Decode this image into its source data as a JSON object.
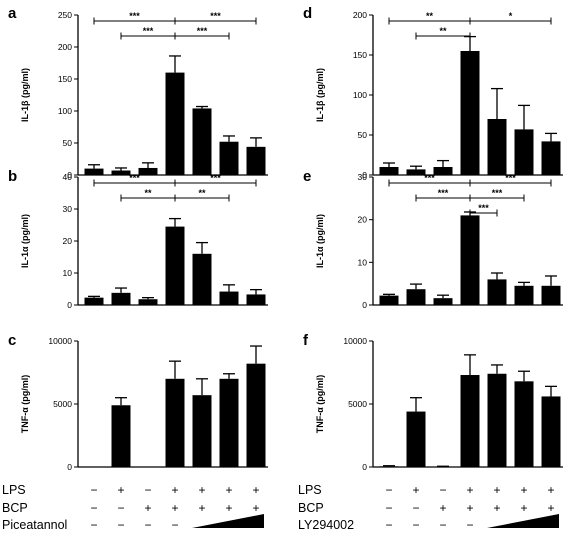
{
  "panels": [
    {
      "label": "a",
      "ylabel": "IL-1β (pg/ml)",
      "ylim": [
        0,
        250
      ],
      "ticks": [
        0,
        50,
        100,
        150,
        200,
        250
      ],
      "values": [
        10,
        7,
        11,
        160,
        104,
        52,
        44
      ],
      "errors": [
        6,
        4,
        8,
        26,
        3,
        9,
        14
      ],
      "sig": [
        {
          "from": 0,
          "to": 3,
          "text": "***",
          "level": 0
        },
        {
          "from": 3,
          "to": 6,
          "text": "***",
          "level": 0
        },
        {
          "from": 1,
          "to": 3,
          "text": "***",
          "level": 1
        },
        {
          "from": 3,
          "to": 5,
          "text": "***",
          "level": 1
        }
      ]
    },
    {
      "label": "b",
      "ylabel": "IL-1α (pg/ml)",
      "ylim": [
        0,
        40
      ],
      "ticks": [
        0,
        10,
        20,
        30,
        40
      ],
      "values": [
        2.3,
        3.8,
        1.8,
        24.5,
        16,
        4.2,
        3.3
      ],
      "errors": [
        0.4,
        1.5,
        0.5,
        2.5,
        3.5,
        2.1,
        1.5
      ],
      "sig": [
        {
          "from": 0,
          "to": 3,
          "text": "***",
          "level": 0
        },
        {
          "from": 3,
          "to": 6,
          "text": "***",
          "level": 0
        },
        {
          "from": 1,
          "to": 3,
          "text": "**",
          "level": 1
        },
        {
          "from": 3,
          "to": 5,
          "text": "**",
          "level": 1
        }
      ]
    },
    {
      "label": "c",
      "ylabel": "TNF-α (pg/ml)",
      "ylim": [
        0,
        10000
      ],
      "ticks": [
        0,
        5000,
        10000
      ],
      "values": [
        0,
        4900,
        0,
        7000,
        5700,
        7000,
        8200
      ],
      "errors": [
        0,
        600,
        0,
        1400,
        1300,
        400,
        1400
      ],
      "sig": []
    },
    {
      "label": "d",
      "ylabel": "IL-1β (pg/ml)",
      "ylim": [
        0,
        200
      ],
      "ticks": [
        0,
        50,
        100,
        150,
        200
      ],
      "values": [
        10,
        7,
        10,
        155,
        70,
        57,
        42
      ],
      "errors": [
        5,
        4,
        8,
        18,
        38,
        30,
        10
      ],
      "sig": [
        {
          "from": 0,
          "to": 3,
          "text": "**",
          "level": 0
        },
        {
          "from": 3,
          "to": 6,
          "text": "*",
          "level": 0
        },
        {
          "from": 1,
          "to": 3,
          "text": "**",
          "level": 1
        }
      ]
    },
    {
      "label": "e",
      "ylabel": "IL-1α (pg/ml)",
      "ylim": [
        0,
        30
      ],
      "ticks": [
        0,
        10,
        20,
        30
      ],
      "values": [
        2.2,
        3.7,
        1.6,
        21,
        6,
        4.5,
        4.5
      ],
      "errors": [
        0.3,
        1.2,
        0.7,
        0.8,
        1.5,
        0.8,
        2.3
      ],
      "sig": [
        {
          "from": 0,
          "to": 3,
          "text": "***",
          "level": 0
        },
        {
          "from": 3,
          "to": 6,
          "text": "***",
          "level": 0
        },
        {
          "from": 1,
          "to": 3,
          "text": "***",
          "level": 1
        },
        {
          "from": 3,
          "to": 5,
          "text": "***",
          "level": 1
        },
        {
          "from": 3,
          "to": 4,
          "text": "***",
          "level": 2
        }
      ]
    },
    {
      "label": "f",
      "ylabel": "TNF-α (pg/ml)",
      "ylim": [
        0,
        10000
      ],
      "ticks": [
        0,
        5000,
        10000
      ],
      "values": [
        50,
        4400,
        30,
        7300,
        7400,
        6800,
        5600
      ],
      "errors": [
        50,
        1100,
        30,
        1600,
        700,
        800,
        800
      ],
      "sig": []
    }
  ],
  "treatments": {
    "left": [
      {
        "name": "LPS",
        "marks": [
          "−",
          "+",
          "−",
          "+",
          "+",
          "+",
          "+"
        ]
      },
      {
        "name": "BCP",
        "marks": [
          "−",
          "−",
          "+",
          "+",
          "+",
          "+",
          "+"
        ]
      },
      {
        "name": "Piceatannol",
        "marks": [
          "−",
          "−",
          "−",
          "−"
        ]
      }
    ],
    "right": [
      {
        "name": "LPS",
        "marks": [
          "−",
          "+",
          "−",
          "+",
          "+",
          "+",
          "+"
        ]
      },
      {
        "name": "BCP",
        "marks": [
          "−",
          "−",
          "+",
          "+",
          "+",
          "+",
          "+"
        ]
      },
      {
        "name": "LY294002",
        "marks": [
          "−",
          "−",
          "−",
          "−"
        ]
      }
    ]
  },
  "chart_data": [
    {
      "type": "bar",
      "title": "a",
      "ylabel": "IL-1β (pg/ml)",
      "ylim": [
        0,
        250
      ],
      "series": [
        {
          "values": [
            10,
            7,
            11,
            160,
            104,
            52,
            44
          ]
        }
      ]
    },
    {
      "type": "bar",
      "title": "b",
      "ylabel": "IL-1α (pg/ml)",
      "ylim": [
        0,
        40
      ],
      "series": [
        {
          "values": [
            2.3,
            3.8,
            1.8,
            24.5,
            16,
            4.2,
            3.3
          ]
        }
      ]
    },
    {
      "type": "bar",
      "title": "c",
      "ylabel": "TNF-α (pg/ml)",
      "ylim": [
        0,
        10000
      ],
      "series": [
        {
          "values": [
            0,
            4900,
            0,
            7000,
            5700,
            7000,
            8200
          ]
        }
      ]
    },
    {
      "type": "bar",
      "title": "d",
      "ylabel": "IL-1β (pg/ml)",
      "ylim": [
        0,
        200
      ],
      "series": [
        {
          "values": [
            10,
            7,
            10,
            155,
            70,
            57,
            42
          ]
        }
      ]
    },
    {
      "type": "bar",
      "title": "e",
      "ylabel": "IL-1α (pg/ml)",
      "ylim": [
        0,
        30
      ],
      "series": [
        {
          "values": [
            2.2,
            3.7,
            1.6,
            21,
            6,
            4.5,
            4.5
          ]
        }
      ]
    },
    {
      "type": "bar",
      "title": "f",
      "ylabel": "TNF-α (pg/ml)",
      "ylim": [
        0,
        10000
      ],
      "series": [
        {
          "values": [
            50,
            4400,
            30,
            7300,
            7400,
            6800,
            5600
          ]
        }
      ]
    }
  ]
}
